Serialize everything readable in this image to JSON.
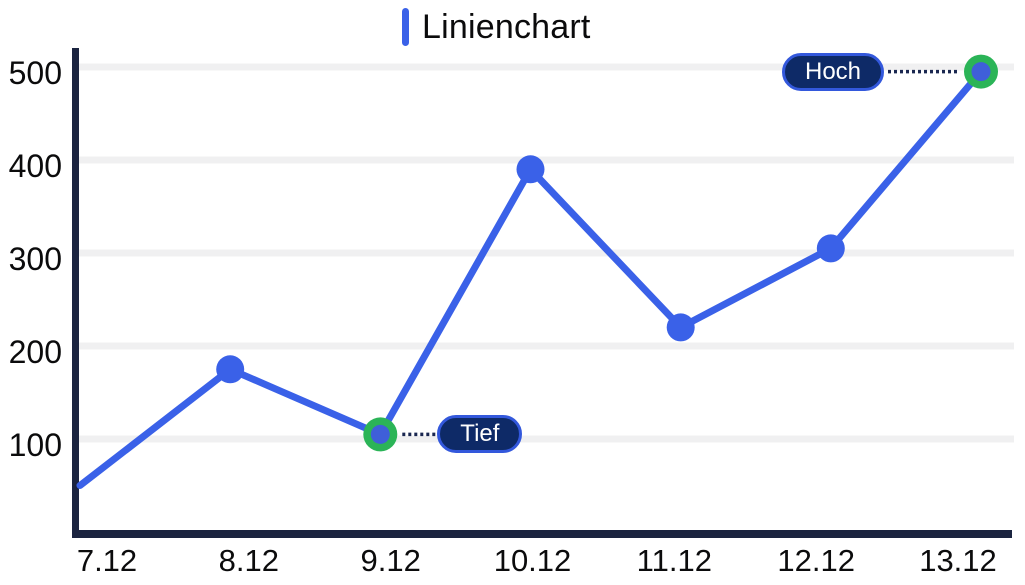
{
  "chart_data": {
    "type": "line",
    "title": "Linienchart",
    "categories": [
      "7.12",
      "8.12",
      "9.12",
      "10.12",
      "11.12",
      "12.12",
      "13.12"
    ],
    "values": [
      50,
      175,
      105,
      390,
      220,
      305,
      495
    ],
    "ylim": [
      0,
      500
    ],
    "yticks": [
      100,
      200,
      300,
      400,
      500
    ],
    "grid": true,
    "legend_position": "top-center",
    "annotations": [
      {
        "index": 2,
        "category": "9.12",
        "value": 105,
        "label": "Tief",
        "side": "right"
      },
      {
        "index": 6,
        "category": "13.12",
        "value": 495,
        "label": "Hoch",
        "side": "left"
      }
    ],
    "colors": {
      "line": "#3A61E8",
      "marker": "#3A61E8",
      "highlight_ring": "#2BB457",
      "highlight_core": "#3F5FD9",
      "axis": "#1B2440",
      "gridline": "#F0F0F1",
      "tick_text": "#0B0B0C",
      "callout_fill": "#0E2A67",
      "callout_border": "#3358DC",
      "callout_text": "#FFFFFF",
      "connector": "#1A2750"
    }
  }
}
